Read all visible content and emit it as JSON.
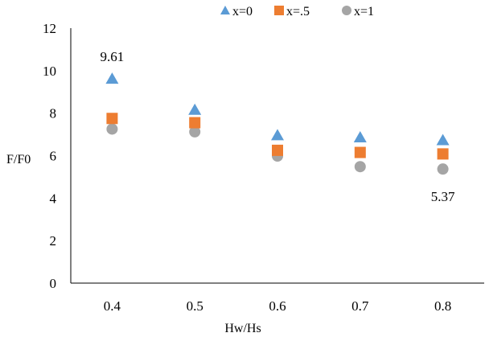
{
  "chart_data": {
    "type": "scatter",
    "xlabel": "Hw/Hs",
    "ylabel": "F/F0",
    "categories": [
      "0.4",
      "0.5",
      "0.6",
      "0.7",
      "0.8"
    ],
    "ylim": [
      0,
      12
    ],
    "yticks": [
      "0",
      "2",
      "4",
      "6",
      "8",
      "10",
      "12"
    ],
    "grid": false,
    "legend_position": "top",
    "series": [
      {
        "name": "x=0",
        "marker": "triangle",
        "color": "#5B9BD5",
        "values": [
          9.61,
          8.15,
          6.95,
          6.85,
          6.72
        ]
      },
      {
        "name": "x=.5",
        "marker": "square",
        "color": "#ED7D31",
        "values": [
          7.75,
          7.55,
          6.25,
          6.15,
          6.08
        ]
      },
      {
        "name": "x=1",
        "marker": "circle",
        "color": "#A5A5A5",
        "values": [
          7.25,
          7.12,
          5.98,
          5.48,
          5.37
        ]
      }
    ],
    "annotations": [
      {
        "text": "9.61",
        "series": 0,
        "index": 0
      },
      {
        "text": "5.37",
        "series": 2,
        "index": 4
      }
    ]
  }
}
